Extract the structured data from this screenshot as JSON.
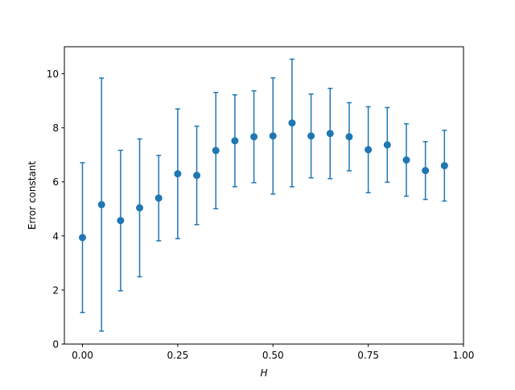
{
  "chart_data": {
    "type": "errorbar",
    "xlabel": "H",
    "ylabel": "Error constant",
    "x": [
      0.0,
      0.05,
      0.1,
      0.15,
      0.2,
      0.25,
      0.3,
      0.35,
      0.4,
      0.45,
      0.5,
      0.55,
      0.6,
      0.65,
      0.7,
      0.75,
      0.8,
      0.85,
      0.9,
      0.95
    ],
    "values": [
      3.94,
      5.16,
      4.57,
      5.04,
      5.4,
      6.3,
      6.24,
      7.16,
      7.52,
      7.67,
      7.7,
      8.18,
      7.7,
      7.79,
      7.67,
      7.19,
      7.37,
      6.81,
      6.42,
      6.6
    ],
    "errors": [
      2.77,
      4.68,
      2.6,
      2.55,
      1.58,
      2.4,
      1.82,
      2.15,
      1.7,
      1.7,
      2.15,
      2.36,
      1.55,
      1.67,
      1.26,
      1.59,
      1.38,
      1.34,
      1.07,
      1.31
    ],
    "color": "#1f77b4",
    "xlim": [
      -0.0475,
      1.0
    ],
    "ylim": [
      0,
      11
    ],
    "xticks": [
      {
        "value": 0,
        "label": "0.00"
      },
      {
        "value": 0.25,
        "label": "0.25"
      },
      {
        "value": 0.5,
        "label": "0.50"
      },
      {
        "value": 0.75,
        "label": "0.75"
      },
      {
        "value": 1,
        "label": "1.00"
      }
    ],
    "yticks": [
      0,
      2,
      4,
      6,
      8,
      10
    ]
  }
}
